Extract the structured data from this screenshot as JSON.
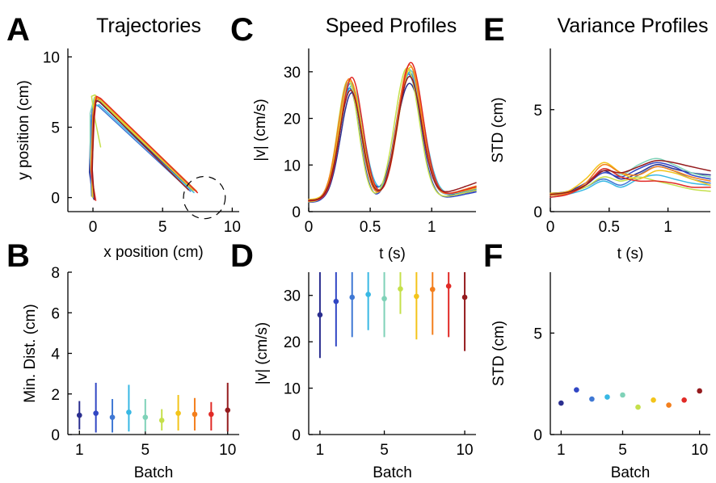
{
  "colors": [
    "#2b2f8f",
    "#3147c4",
    "#3f78d4",
    "#38b8e4",
    "#7fd2b8",
    "#c5e04b",
    "#f3c41a",
    "#f37f1d",
    "#e12a26",
    "#951b1e"
  ],
  "chart_data": [
    {
      "id": "A",
      "letter": "A",
      "type": "line",
      "title": "Trajectories",
      "xlabel": "x position (cm)",
      "ylabel": "y position (cm)",
      "xlim": [
        -1.8,
        10.5
      ],
      "ylim": [
        -1.0,
        10.6
      ],
      "xticks": [
        0,
        5,
        10
      ],
      "yticks": [
        0,
        5,
        10
      ],
      "target": {
        "x": 8.0,
        "y": 0.0,
        "r": 1.5
      },
      "series": [
        {
          "points": [
            [
              0.0,
              0.0
            ],
            [
              -0.25,
              1.8
            ],
            [
              -0.15,
              5.3
            ],
            [
              0.05,
              6.6
            ],
            [
              0.35,
              6.9
            ],
            [
              7.05,
              0.55
            ]
          ]
        },
        {
          "points": [
            [
              0.05,
              -0.1
            ],
            [
              -0.15,
              2.3
            ],
            [
              -0.1,
              5.8
            ],
            [
              0.1,
              7.0
            ],
            [
              0.3,
              7.15
            ],
            [
              7.15,
              0.55
            ]
          ]
        },
        {
          "points": [
            [
              -0.1,
              0.1
            ],
            [
              -0.2,
              2.5
            ],
            [
              -0.1,
              5.7
            ],
            [
              0.0,
              6.7
            ],
            [
              0.4,
              6.5
            ],
            [
              7.0,
              0.45
            ]
          ]
        },
        {
          "points": [
            [
              0.1,
              -0.1
            ],
            [
              -0.1,
              2.0
            ],
            [
              0.0,
              5.4
            ],
            [
              0.15,
              6.5
            ],
            [
              0.45,
              6.6
            ],
            [
              7.25,
              0.35
            ]
          ]
        },
        {
          "points": [
            [
              0.0,
              0.0
            ],
            [
              -0.2,
              2.8
            ],
            [
              -0.2,
              6.0
            ],
            [
              0.1,
              7.1
            ],
            [
              0.5,
              6.9
            ],
            [
              7.3,
              0.5
            ]
          ]
        },
        {
          "points": [
            [
              0.55,
              3.6
            ],
            [
              0.1,
              5.8
            ],
            [
              -0.1,
              7.2
            ],
            [
              0.15,
              7.3
            ],
            [
              0.45,
              6.9
            ],
            [
              6.95,
              0.75
            ]
          ]
        },
        {
          "points": [
            [
              -0.05,
              0.05
            ],
            [
              -0.1,
              2.5
            ],
            [
              0.0,
              6.0
            ],
            [
              0.15,
              7.15
            ],
            [
              0.45,
              7.05
            ],
            [
              7.2,
              0.5
            ]
          ]
        },
        {
          "points": [
            [
              0.1,
              0.0
            ],
            [
              -0.15,
              2.0
            ],
            [
              0.0,
              5.8
            ],
            [
              0.2,
              7.0
            ],
            [
              0.6,
              7.0
            ],
            [
              7.45,
              0.45
            ]
          ]
        },
        {
          "points": [
            [
              0.2,
              -0.2
            ],
            [
              -0.1,
              1.5
            ],
            [
              0.1,
              5.6
            ],
            [
              0.25,
              7.2
            ],
            [
              0.55,
              7.05
            ],
            [
              7.5,
              0.35
            ]
          ]
        },
        {
          "points": [
            [
              0.1,
              -0.15
            ],
            [
              -0.05,
              2.0
            ],
            [
              0.05,
              5.7
            ],
            [
              0.2,
              6.9
            ],
            [
              0.5,
              6.8
            ],
            [
              6.85,
              0.55
            ]
          ]
        }
      ]
    },
    {
      "id": "C",
      "letter": "C",
      "type": "line",
      "title": "Speed Profiles",
      "xlabel": "t (s)",
      "ylabel": "|v| (cm/s)",
      "xlim": [
        0,
        1.36
      ],
      "ylim": [
        0,
        35
      ],
      "xticks": [
        0,
        0.5,
        1
      ],
      "xtick_labels": [
        "0",
        "0.5",
        "1"
      ],
      "yticks": [
        0,
        10,
        20,
        30
      ],
      "series": [
        {
          "peaks": [
            [
              0.35,
              25.5,
              0.09
            ],
            [
              0.82,
              27.5,
              0.11
            ]
          ],
          "trough": 0.6,
          "base": 2.2,
          "tail": 4.5
        },
        {
          "peaks": [
            [
              0.33,
              26.5,
              0.085
            ],
            [
              0.81,
              29.5,
              0.1
            ]
          ],
          "trough": 0.57,
          "base": 2.0,
          "tail": 4.2
        },
        {
          "peaks": [
            [
              0.34,
              27.5,
              0.09
            ],
            [
              0.82,
              29.8,
              0.1
            ]
          ],
          "trough": 0.58,
          "base": 2.5,
          "tail": 4.8
        },
        {
          "peaks": [
            [
              0.35,
              27.0,
              0.095
            ],
            [
              0.83,
              30.2,
              0.105
            ]
          ],
          "trough": 0.6,
          "base": 2.4,
          "tail": 5.0
        },
        {
          "peaks": [
            [
              0.33,
              27.8,
              0.09
            ],
            [
              0.82,
              30.5,
              0.1
            ]
          ],
          "trough": 0.58,
          "base": 2.3,
          "tail": 5.2
        },
        {
          "peaks": [
            [
              0.32,
              28.2,
              0.085
            ],
            [
              0.8,
              30.8,
              0.1
            ]
          ],
          "trough": 0.56,
          "base": 2.1,
          "tail": 4.6
        },
        {
          "peaks": [
            [
              0.34,
              28.0,
              0.09
            ],
            [
              0.83,
              31.0,
              0.1
            ]
          ],
          "trough": 0.58,
          "base": 2.6,
          "tail": 5.0
        },
        {
          "peaks": [
            [
              0.33,
              28.5,
              0.09
            ],
            [
              0.82,
              31.5,
              0.1
            ]
          ],
          "trough": 0.58,
          "base": 2.2,
          "tail": 5.5
        },
        {
          "peaks": [
            [
              0.35,
              28.8,
              0.09
            ],
            [
              0.83,
              32.0,
              0.1
            ]
          ],
          "trough": 0.6,
          "base": 2.3,
          "tail": 5.3
        },
        {
          "peaks": [
            [
              0.34,
              26.0,
              0.09
            ],
            [
              0.82,
              29.0,
              0.1
            ]
          ],
          "trough": 0.59,
          "base": 2.4,
          "tail": 6.2
        }
      ]
    },
    {
      "id": "E",
      "letter": "E",
      "type": "line",
      "title": "Variance Profiles",
      "xlabel": "t (s)",
      "ylabel": "STD (cm)",
      "xlim": [
        0,
        1.36
      ],
      "ylim": [
        0,
        8
      ],
      "xticks": [
        0,
        0.5,
        1
      ],
      "xtick_labels": [
        "0",
        "0.5",
        "1"
      ],
      "yticks": [
        0,
        5
      ],
      "series": [
        {
          "points": [
            [
              0,
              0.9
            ],
            [
              0.15,
              1.0
            ],
            [
              0.3,
              1.4
            ],
            [
              0.45,
              2.0
            ],
            [
              0.6,
              1.6
            ],
            [
              0.75,
              1.9
            ],
            [
              0.9,
              2.3
            ],
            [
              1.05,
              2.1
            ],
            [
              1.2,
              1.9
            ],
            [
              1.36,
              1.8
            ]
          ]
        },
        {
          "points": [
            [
              0,
              0.8
            ],
            [
              0.15,
              0.9
            ],
            [
              0.3,
              1.3
            ],
            [
              0.45,
              1.9
            ],
            [
              0.6,
              1.7
            ],
            [
              0.75,
              2.1
            ],
            [
              0.9,
              2.4
            ],
            [
              1.05,
              2.2
            ],
            [
              1.2,
              1.8
            ],
            [
              1.36,
              1.6
            ]
          ]
        },
        {
          "points": [
            [
              0,
              0.9
            ],
            [
              0.15,
              0.95
            ],
            [
              0.3,
              1.2
            ],
            [
              0.45,
              1.6
            ],
            [
              0.6,
              1.3
            ],
            [
              0.75,
              1.8
            ],
            [
              0.9,
              2.2
            ],
            [
              1.05,
              2.0
            ],
            [
              1.2,
              1.6
            ],
            [
              1.36,
              1.4
            ]
          ]
        },
        {
          "points": [
            [
              0,
              0.7
            ],
            [
              0.15,
              0.85
            ],
            [
              0.3,
              1.1
            ],
            [
              0.45,
              1.5
            ],
            [
              0.6,
              1.2
            ],
            [
              0.75,
              1.6
            ],
            [
              0.9,
              1.8
            ],
            [
              1.05,
              1.6
            ],
            [
              1.2,
              1.4
            ],
            [
              1.36,
              1.3
            ]
          ]
        },
        {
          "points": [
            [
              0,
              0.8
            ],
            [
              0.15,
              0.9
            ],
            [
              0.3,
              1.3
            ],
            [
              0.45,
              2.1
            ],
            [
              0.6,
              1.8
            ],
            [
              0.75,
              2.3
            ],
            [
              0.9,
              2.6
            ],
            [
              1.05,
              2.3
            ],
            [
              1.2,
              1.9
            ],
            [
              1.36,
              1.7
            ]
          ]
        },
        {
          "points": [
            [
              0,
              0.85
            ],
            [
              0.15,
              0.95
            ],
            [
              0.3,
              1.2
            ],
            [
              0.45,
              1.7
            ],
            [
              0.6,
              1.5
            ],
            [
              0.75,
              1.7
            ],
            [
              0.9,
              1.5
            ],
            [
              1.05,
              1.3
            ],
            [
              1.2,
              1.1
            ],
            [
              1.36,
              1.0
            ]
          ]
        },
        {
          "points": [
            [
              0,
              0.9
            ],
            [
              0.15,
              1.0
            ],
            [
              0.3,
              1.6
            ],
            [
              0.45,
              2.4
            ],
            [
              0.6,
              1.9
            ],
            [
              0.75,
              1.6
            ],
            [
              0.9,
              2.0
            ],
            [
              1.05,
              1.9
            ],
            [
              1.2,
              1.6
            ],
            [
              1.36,
              1.3
            ]
          ]
        },
        {
          "points": [
            [
              0,
              0.8
            ],
            [
              0.15,
              0.9
            ],
            [
              0.3,
              1.4
            ],
            [
              0.45,
              2.3
            ],
            [
              0.6,
              1.9
            ],
            [
              0.75,
              1.8
            ],
            [
              0.9,
              2.2
            ],
            [
              1.05,
              2.0
            ],
            [
              1.2,
              1.7
            ],
            [
              1.36,
              1.5
            ]
          ]
        },
        {
          "points": [
            [
              0,
              0.7
            ],
            [
              0.15,
              0.85
            ],
            [
              0.3,
              1.3
            ],
            [
              0.45,
              2.1
            ],
            [
              0.6,
              1.7
            ],
            [
              0.75,
              1.5
            ],
            [
              0.9,
              1.5
            ],
            [
              1.05,
              1.4
            ],
            [
              1.2,
              1.2
            ],
            [
              1.36,
              1.2
            ]
          ]
        },
        {
          "points": [
            [
              0,
              0.85
            ],
            [
              0.15,
              0.95
            ],
            [
              0.3,
              1.3
            ],
            [
              0.45,
              2.0
            ],
            [
              0.6,
              1.9
            ],
            [
              0.75,
              2.2
            ],
            [
              0.9,
              2.5
            ],
            [
              1.05,
              2.4
            ],
            [
              1.2,
              2.2
            ],
            [
              1.36,
              2.0
            ]
          ]
        }
      ]
    },
    {
      "id": "B",
      "letter": "B",
      "type": "scatter",
      "title": "",
      "xlabel": "Batch",
      "ylabel": "Min. Dist. (cm)",
      "xlim": [
        0.3,
        10.7
      ],
      "ylim": [
        0,
        8
      ],
      "xticks": [
        1,
        5,
        10
      ],
      "yticks": [
        0,
        2,
        4,
        6,
        8
      ],
      "x": [
        1,
        2,
        3,
        4,
        5,
        6,
        7,
        8,
        9,
        10
      ],
      "values": [
        0.95,
        1.05,
        0.85,
        1.1,
        0.85,
        0.7,
        1.05,
        1.0,
        1.0,
        1.2
      ],
      "err_low": [
        0.25,
        0.1,
        0.1,
        0.15,
        0.15,
        0.2,
        0.2,
        0.2,
        0.2,
        0.15
      ],
      "err_high": [
        1.65,
        2.55,
        1.75,
        2.45,
        1.75,
        1.25,
        1.95,
        1.8,
        1.6,
        2.55
      ]
    },
    {
      "id": "D",
      "letter": "D",
      "type": "scatter",
      "title": "",
      "xlabel": "Batch",
      "ylabel": "|v| (cm/s)",
      "xlim": [
        0.3,
        10.7
      ],
      "ylim": [
        0,
        35
      ],
      "xticks": [
        1,
        5,
        10
      ],
      "yticks": [
        0,
        10,
        20,
        30
      ],
      "x": [
        1,
        2,
        3,
        4,
        5,
        6,
        7,
        8,
        9,
        10
      ],
      "values": [
        25.8,
        28.7,
        29.6,
        30.2,
        29.3,
        31.4,
        29.8,
        31.3,
        32.0,
        29.6
      ],
      "err_low": [
        16.5,
        19.0,
        21.0,
        22.5,
        21.0,
        26.0,
        20.5,
        21.5,
        21.0,
        18.0
      ],
      "err_high": [
        35.0,
        35.0,
        35.0,
        35.0,
        35.0,
        35.0,
        35.0,
        35.0,
        35.0,
        35.0
      ]
    },
    {
      "id": "F",
      "letter": "F",
      "type": "scatter",
      "title": "",
      "xlabel": "Batch",
      "ylabel": "STD (cm)",
      "xlim": [
        0.3,
        10.7
      ],
      "ylim": [
        0,
        8
      ],
      "xticks": [
        1,
        5,
        10
      ],
      "yticks": [
        0,
        5
      ],
      "x": [
        1,
        2,
        3,
        4,
        5,
        6,
        7,
        8,
        9,
        10
      ],
      "values": [
        1.55,
        2.2,
        1.75,
        1.85,
        1.95,
        1.35,
        1.7,
        1.45,
        1.7,
        2.15
      ]
    }
  ]
}
